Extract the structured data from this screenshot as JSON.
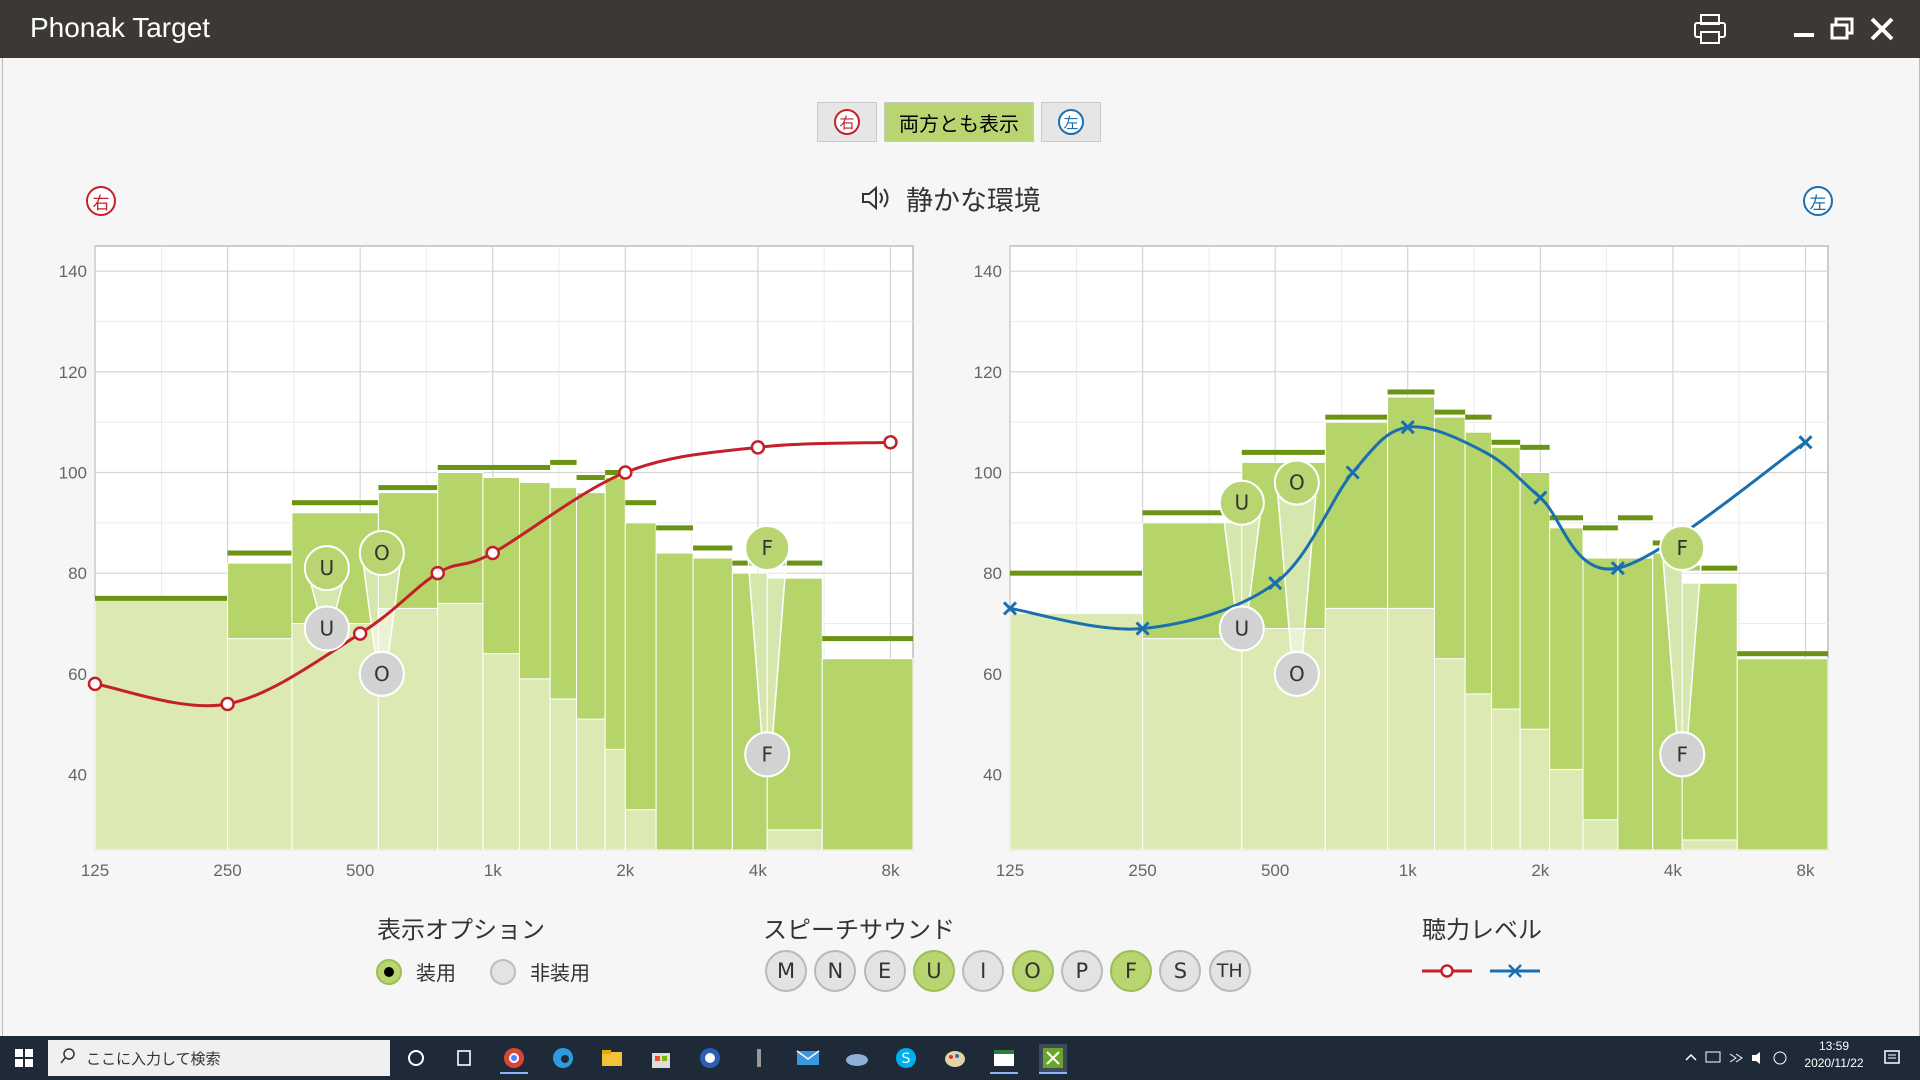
{
  "window": {
    "title": "Phonak Target"
  },
  "side_toggle": {
    "right": "右",
    "both": "両方とも表示",
    "left": "左"
  },
  "environment": {
    "title": "静かな環境",
    "right_ear": "右",
    "left_ear": "左"
  },
  "display_options": {
    "title": "表示オプション",
    "aided": "装用",
    "unaided": "非装用",
    "selected": "aided"
  },
  "speech_sounds": {
    "title": "スピーチサウンド",
    "items": [
      "M",
      "N",
      "E",
      "U",
      "I",
      "O",
      "P",
      "F",
      "S",
      "TH"
    ],
    "active": [
      "U",
      "O",
      "F"
    ]
  },
  "hearing_level": {
    "title": "聴力レベル"
  },
  "colors": {
    "right": "#c4202a",
    "left": "#1a6fb0",
    "bar_dark": "#b5d46a",
    "bar_light": "#dce9b3",
    "bar_top": "#6a9412",
    "active_button": "#b8d572"
  },
  "taskbar": {
    "search_placeholder": "ここに入力して検索",
    "time": "13:59",
    "date": "2020/11/22"
  },
  "chart_data": [
    {
      "type": "line",
      "ear": "right",
      "x_ticks": [
        "125",
        "250",
        "500",
        "1k",
        "2k",
        "4k",
        "8k"
      ],
      "y_ticks": [
        40,
        60,
        80,
        100,
        120,
        140
      ],
      "ylim": [
        25,
        145
      ],
      "x_scale": "log",
      "grid": true,
      "hearing_threshold": [
        {
          "x": 125,
          "y": 58
        },
        {
          "x": 250,
          "y": 54
        },
        {
          "x": 500,
          "y": 68
        },
        {
          "x": 750,
          "y": 80
        },
        {
          "x": 1000,
          "y": 84
        },
        {
          "x": 2000,
          "y": 100
        },
        {
          "x": 4000,
          "y": 105
        },
        {
          "x": 8000,
          "y": 106
        }
      ],
      "bands": [
        {
          "x0": 125,
          "x1": 250,
          "light": 75,
          "dark": 75,
          "top": 75
        },
        {
          "x0": 250,
          "x1": 350,
          "light": 67,
          "dark": 82,
          "top": 84
        },
        {
          "x0": 350,
          "x1": 550,
          "light": 70,
          "dark": 92,
          "top": 94
        },
        {
          "x0": 550,
          "x1": 750,
          "light": 73,
          "dark": 96,
          "top": 97
        },
        {
          "x0": 750,
          "x1": 950,
          "light": 74,
          "dark": 100,
          "top": 101
        },
        {
          "x0": 950,
          "x1": 1150,
          "light": 64,
          "dark": 99,
          "top": 101
        },
        {
          "x0": 1150,
          "x1": 1350,
          "light": 59,
          "dark": 98,
          "top": 101
        },
        {
          "x0": 1350,
          "x1": 1550,
          "light": 55,
          "dark": 97,
          "top": 102
        },
        {
          "x0": 1550,
          "x1": 1800,
          "light": 51,
          "dark": 96,
          "top": 99
        },
        {
          "x0": 1800,
          "x1": 2000,
          "light": 45,
          "dark": 99,
          "top": 100
        },
        {
          "x0": 2000,
          "x1": 2350,
          "light": 33,
          "dark": 90,
          "top": 94
        },
        {
          "x0": 2350,
          "x1": 2850,
          "light": 25,
          "dark": 84,
          "top": 89
        },
        {
          "x0": 2850,
          "x1": 3500,
          "light": 25,
          "dark": 83,
          "top": 85
        },
        {
          "x0": 3500,
          "x1": 4200,
          "light": 25,
          "dark": 80,
          "top": 82
        },
        {
          "x0": 4200,
          "x1": 5600,
          "light": 29,
          "dark": 79,
          "top": 82
        },
        {
          "x0": 5600,
          "x1": 9000,
          "light": 25,
          "dark": 63,
          "top": 67
        }
      ],
      "speech_markers": [
        {
          "label": "U",
          "x": 420,
          "top": 81,
          "bottom": 69
        },
        {
          "label": "O",
          "x": 560,
          "top": 84,
          "bottom": 60
        },
        {
          "label": "F",
          "x": 4200,
          "top": 85,
          "bottom": 44
        }
      ]
    },
    {
      "type": "line",
      "ear": "left",
      "x_ticks": [
        "125",
        "250",
        "500",
        "1k",
        "2k",
        "4k",
        "8k"
      ],
      "y_ticks": [
        40,
        60,
        80,
        100,
        120,
        140
      ],
      "ylim": [
        25,
        145
      ],
      "x_scale": "log",
      "grid": true,
      "hearing_threshold": [
        {
          "x": 125,
          "y": 73
        },
        {
          "x": 250,
          "y": 69
        },
        {
          "x": 500,
          "y": 78
        },
        {
          "x": 750,
          "y": 100
        },
        {
          "x": 1000,
          "y": 109
        },
        {
          "x": 1500,
          "y": 104
        },
        {
          "x": 2000,
          "y": 95
        },
        {
          "x": 3000,
          "y": 81
        },
        {
          "x": 8000,
          "y": 106
        }
      ],
      "bands": [
        {
          "x0": 125,
          "x1": 250,
          "light": 72,
          "dark": 72,
          "top": 80
        },
        {
          "x0": 250,
          "x1": 420,
          "light": 67,
          "dark": 90,
          "top": 92
        },
        {
          "x0": 420,
          "x1": 650,
          "light": 69,
          "dark": 102,
          "top": 104
        },
        {
          "x0": 650,
          "x1": 900,
          "light": 73,
          "dark": 110,
          "top": 111
        },
        {
          "x0": 900,
          "x1": 1150,
          "light": 73,
          "dark": 115,
          "top": 116
        },
        {
          "x0": 1150,
          "x1": 1350,
          "light": 63,
          "dark": 111,
          "top": 112
        },
        {
          "x0": 1350,
          "x1": 1550,
          "light": 56,
          "dark": 108,
          "top": 111
        },
        {
          "x0": 1550,
          "x1": 1800,
          "light": 53,
          "dark": 105,
          "top": 106
        },
        {
          "x0": 1800,
          "x1": 2100,
          "light": 49,
          "dark": 100,
          "top": 105
        },
        {
          "x0": 2100,
          "x1": 2500,
          "light": 41,
          "dark": 89,
          "top": 91
        },
        {
          "x0": 2500,
          "x1": 3000,
          "light": 31,
          "dark": 83,
          "top": 89
        },
        {
          "x0": 3000,
          "x1": 3600,
          "light": 25,
          "dark": 83,
          "top": 91
        },
        {
          "x0": 3600,
          "x1": 4200,
          "light": 25,
          "dark": 84,
          "top": 86
        },
        {
          "x0": 4200,
          "x1": 5600,
          "light": 27,
          "dark": 78,
          "top": 81
        },
        {
          "x0": 5600,
          "x1": 9000,
          "light": 25,
          "dark": 63,
          "top": 64
        }
      ],
      "speech_markers": [
        {
          "label": "U",
          "x": 420,
          "top": 94,
          "bottom": 69
        },
        {
          "label": "O",
          "x": 560,
          "top": 98,
          "bottom": 60
        },
        {
          "label": "F",
          "x": 4200,
          "top": 85,
          "bottom": 44
        }
      ]
    }
  ]
}
